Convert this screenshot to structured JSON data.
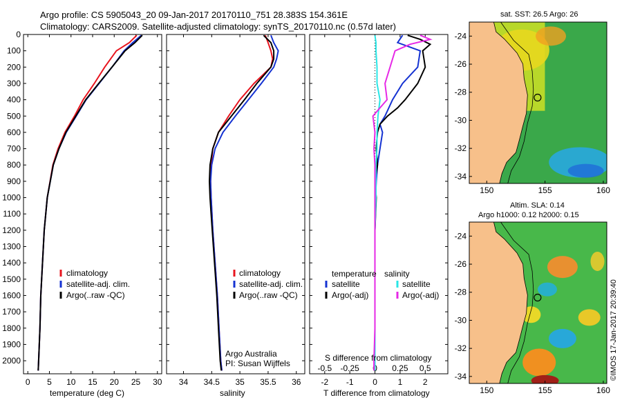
{
  "titles": {
    "line1": "Argo profile: CS 5905043_20 09-Jan-2017 20170110_751 28.383S 154.361E",
    "line2": "Climatology: CARS2009. Satellite-adjusted climatology: synTS_20170110.nc (0.57d later)"
  },
  "stamp": "©IMOS 17-Jan-2017 20:39:40",
  "credits": {
    "line1": "Argo Australia",
    "line2": "PI: Susan Wijffels"
  },
  "colors": {
    "climatology": "#e8141e",
    "satellite": "#1432d2",
    "argo": "#000000",
    "s_sat": "#28e6e6",
    "s_argo": "#e628e6"
  },
  "chart_data": [
    {
      "type": "line",
      "xlabel": "temperature (deg C)",
      "ylabel": "",
      "xlim": [
        -1,
        31
      ],
      "ylim": [
        2080,
        0
      ],
      "xticks": [
        0,
        5,
        10,
        15,
        20,
        25,
        30
      ],
      "yticks": [
        0,
        100,
        200,
        300,
        400,
        500,
        600,
        700,
        800,
        900,
        1000,
        1100,
        1200,
        1300,
        1400,
        1500,
        1600,
        1700,
        1800,
        1900,
        2000
      ],
      "legend": [
        "climatology",
        "satellite-adj. clim.",
        "Argo(..raw -QC)"
      ],
      "series": [
        {
          "name": "climatology",
          "depth": [
            5,
            50,
            100,
            200,
            300,
            400,
            500,
            600,
            700,
            800,
            1000,
            1200,
            1400,
            1600,
            1800,
            2000,
            2060
          ],
          "values": [
            25.2,
            23.5,
            20.5,
            17.8,
            15.4,
            12.8,
            10.8,
            8.6,
            7,
            5.8,
            4.5,
            3.8,
            3.4,
            3,
            2.8,
            2.5,
            2.4
          ]
        },
        {
          "name": "satellite-adj. clim.",
          "depth": [
            5,
            50,
            100,
            200,
            300,
            400,
            500,
            600,
            700,
            800,
            1000,
            1200,
            1400,
            1600,
            1800,
            2000,
            2060
          ],
          "values": [
            26.3,
            24.3,
            22.3,
            19.5,
            16.5,
            13.5,
            11.2,
            8.9,
            7.2,
            5.9,
            4.5,
            3.8,
            3.4,
            3,
            2.8,
            2.5,
            2.4
          ]
        },
        {
          "name": "Argo(..raw -QC)",
          "depth": [
            5,
            50,
            100,
            200,
            300,
            400,
            500,
            600,
            700,
            800,
            1000,
            1200,
            1400,
            1600,
            1800,
            2000,
            2060
          ],
          "values": [
            26.5,
            24.8,
            22.5,
            19.5,
            16.4,
            13.4,
            11.1,
            8.8,
            7.2,
            5.9,
            4.5,
            3.8,
            3.4,
            3,
            2.8,
            2.5,
            2.4
          ]
        }
      ]
    },
    {
      "type": "line",
      "xlabel": "salinity",
      "ylabel": "",
      "xlim": [
        33.7,
        36.15
      ],
      "ylim": [
        2080,
        0
      ],
      "xticks": [
        34,
        34.5,
        35,
        35.5,
        36
      ],
      "legend": [
        "climatology",
        "satellite-adj. clim.",
        "Argo(..raw -QC)"
      ],
      "series": [
        {
          "name": "climatology",
          "depth": [
            5,
            50,
            100,
            150,
            200,
            300,
            400,
            500,
            600,
            700,
            800,
            900,
            1000,
            1200,
            1400,
            1600,
            1800,
            2000,
            2060
          ],
          "values": [
            35.45,
            35.5,
            35.55,
            35.58,
            35.55,
            35.25,
            35.0,
            34.8,
            34.62,
            34.52,
            34.49,
            34.48,
            34.49,
            34.52,
            34.56,
            34.6,
            34.63,
            34.66,
            34.68
          ]
        },
        {
          "name": "satellite-adj. clim.",
          "depth": [
            5,
            50,
            100,
            150,
            200,
            300,
            400,
            500,
            600,
            700,
            800,
            900,
            1000,
            1200,
            1400,
            1600,
            1800,
            2000,
            2060
          ],
          "values": [
            35.55,
            35.6,
            35.68,
            35.65,
            35.6,
            35.38,
            35.15,
            34.92,
            34.7,
            34.56,
            34.5,
            34.48,
            34.49,
            34.52,
            34.56,
            34.6,
            34.63,
            34.66,
            34.68
          ]
        },
        {
          "name": "Argo(..raw -QC)",
          "depth": [
            5,
            50,
            100,
            150,
            200,
            300,
            400,
            500,
            600,
            700,
            800,
            900,
            1000,
            1200,
            1400,
            1600,
            1800,
            2000,
            2060
          ],
          "values": [
            35.42,
            35.55,
            35.6,
            35.6,
            35.55,
            35.3,
            35.08,
            34.85,
            34.62,
            34.52,
            34.47,
            34.46,
            34.47,
            34.51,
            34.55,
            34.59,
            34.62,
            34.65,
            34.67
          ]
        }
      ]
    },
    {
      "type": "line",
      "xlabel": "T difference from climatology",
      "top_axis_label": "S difference from climatology",
      "xlim": [
        -2.6,
        2.9
      ],
      "ylim": [
        2080,
        0
      ],
      "xticks": [
        -2,
        -1,
        0,
        1,
        2
      ],
      "xtick_labels": [
        "-2",
        "-1",
        "0",
        "1",
        "2"
      ],
      "top_xticks": [
        -0.5,
        -0.25,
        0,
        0.25,
        0.5
      ],
      "top_xtick_labels": [
        "-0.5",
        "-0.25",
        "0",
        "0.25",
        "0.5"
      ],
      "legend_left_header": "temperature",
      "legend_right_header": "salinity",
      "legend_left": [
        "satellite",
        "Argo(-adj)"
      ],
      "legend_right": [
        "satellite",
        "Argo(-adj)"
      ],
      "series": [
        {
          "name": "satellite",
          "quantity": "T",
          "depth": [
            5,
            50,
            100,
            200,
            300,
            400,
            500,
            550,
            600,
            700,
            800,
            900,
            1000,
            1200,
            1400,
            1600,
            1800,
            2000,
            2060
          ],
          "values": [
            1.1,
            0.9,
            1.8,
            1.7,
            1.1,
            0.7,
            0.4,
            0.2,
            0.3,
            0.2,
            0.1,
            0.05,
            0.02,
            0.0,
            0.0,
            0.0,
            0.0,
            0.0,
            0.0
          ]
        },
        {
          "name": "Argo(-adj)",
          "quantity": "T",
          "depth": [
            5,
            30,
            60,
            100,
            200,
            300,
            400,
            450,
            500,
            550,
            600,
            700,
            800,
            900,
            1000,
            1200,
            1400,
            1600,
            1800,
            2000,
            2060
          ],
          "values": [
            1.3,
            1.8,
            2.2,
            1.9,
            2.0,
            1.7,
            1.2,
            0.9,
            0.5,
            0.2,
            0.1,
            0.05,
            0.1,
            0.0,
            0.05,
            0.0,
            0.0,
            0.0,
            0.0,
            0.0,
            0.0
          ]
        },
        {
          "name": "satellite",
          "quantity": "S",
          "depth": [
            5,
            50,
            100,
            200,
            300,
            400,
            500,
            600,
            700,
            800,
            1000,
            1200,
            1400,
            1600,
            1800,
            2000,
            2060
          ],
          "values": [
            0.0,
            0.01,
            0.01,
            0.02,
            0.02,
            0.05,
            0.03,
            0.02,
            0.02,
            0.01,
            0.01,
            0.0,
            0.0,
            0.0,
            0.0,
            0.0,
            0.0
          ]
        },
        {
          "name": "Argo(-adj)",
          "quantity": "S",
          "depth": [
            5,
            30,
            60,
            100,
            200,
            300,
            400,
            450,
            500,
            600,
            700,
            800,
            1000,
            1200,
            1400,
            1600,
            1800,
            2000,
            2060
          ],
          "values": [
            0.45,
            0.55,
            0.35,
            0.2,
            0.15,
            0.1,
            0.12,
            0.05,
            -0.02,
            0.0,
            -0.01,
            0.0,
            0.0,
            0.0,
            0.0,
            0.0,
            0.0,
            -0.01,
            -0.01
          ]
        }
      ]
    },
    {
      "type": "heatmap",
      "title": "sat. SST: 26.5 Argo: 26",
      "xticks": [
        150,
        155,
        160
      ],
      "yticks": [
        -24,
        -26,
        -28,
        -30,
        -32,
        -34
      ],
      "xlim": [
        148.5,
        160.3
      ],
      "ylim": [
        -34.5,
        -23
      ],
      "argo_position": {
        "lon": 154.361,
        "lat": -28.383
      }
    },
    {
      "type": "heatmap",
      "title_line1": "Altim. SLA: 0.14",
      "title_line2": "Argo h1000: 0.12 h2000: 0.15",
      "xticks": [
        150,
        155,
        160
      ],
      "yticks": [
        -24,
        -26,
        -28,
        -30,
        -32,
        -34
      ],
      "xlim": [
        148.5,
        160.3
      ],
      "ylim": [
        -34.5,
        -23
      ],
      "argo_position": {
        "lon": 154.361,
        "lat": -28.383
      }
    }
  ]
}
